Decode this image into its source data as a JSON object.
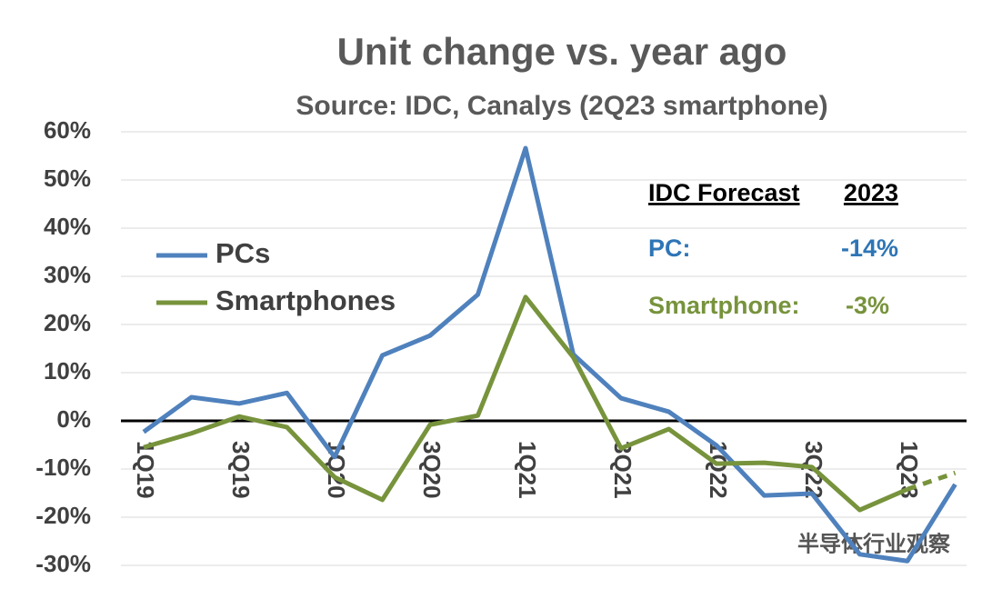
{
  "chart_data": {
    "type": "line",
    "title": "Unit change vs. year ago",
    "subtitle": "Source: IDC, Canalys (2Q23 smartphone)",
    "categories": [
      "1Q19",
      null,
      "3Q19",
      null,
      "1Q20",
      null,
      "3Q20",
      null,
      "1Q21",
      null,
      "3Q21",
      null,
      "1Q22",
      null,
      "3Q22",
      null,
      "1Q23",
      null
    ],
    "series": [
      {
        "name": "PCs",
        "color": "#4f81bd",
        "values": [
          -2.3,
          4.9,
          3.6,
          5.8,
          -7.5,
          13.6,
          17.7,
          26.2,
          56.6,
          13.8,
          4.7,
          1.9,
          -5.1,
          -15.5,
          -15.1,
          -27.7,
          -29.1,
          -13.2
        ]
      },
      {
        "name": "Smartphones",
        "color": "#77933c",
        "dashed_from": 16,
        "values": [
          -5.5,
          -2.6,
          0.9,
          -1.3,
          -11.7,
          -16.4,
          -0.8,
          1.1,
          25.7,
          13.2,
          -5.7,
          -1.7,
          -8.9,
          -8.7,
          -9.6,
          -18.5,
          -14.2,
          -10.8
        ]
      }
    ],
    "ylim": [
      -30,
      60
    ],
    "yticks": [
      {
        "value": -30,
        "label": "-30%"
      },
      {
        "value": -20,
        "label": "-20%"
      },
      {
        "value": -10,
        "label": "-10%"
      },
      {
        "value": 0,
        "label": "0%"
      },
      {
        "value": 10,
        "label": "10%"
      },
      {
        "value": 20,
        "label": "20%"
      },
      {
        "value": 30,
        "label": "30%"
      },
      {
        "value": 40,
        "label": "40%"
      },
      {
        "value": 50,
        "label": "50%"
      },
      {
        "value": 60,
        "label": "60%"
      }
    ],
    "grid": true,
    "annotations": {
      "heading": "IDC Forecast",
      "year": "2023",
      "pc_label": "PC:",
      "pc_value": "-14%",
      "phone_label": "Smartphone:",
      "phone_value": "-3%"
    },
    "watermark": "半导体行业观察"
  }
}
